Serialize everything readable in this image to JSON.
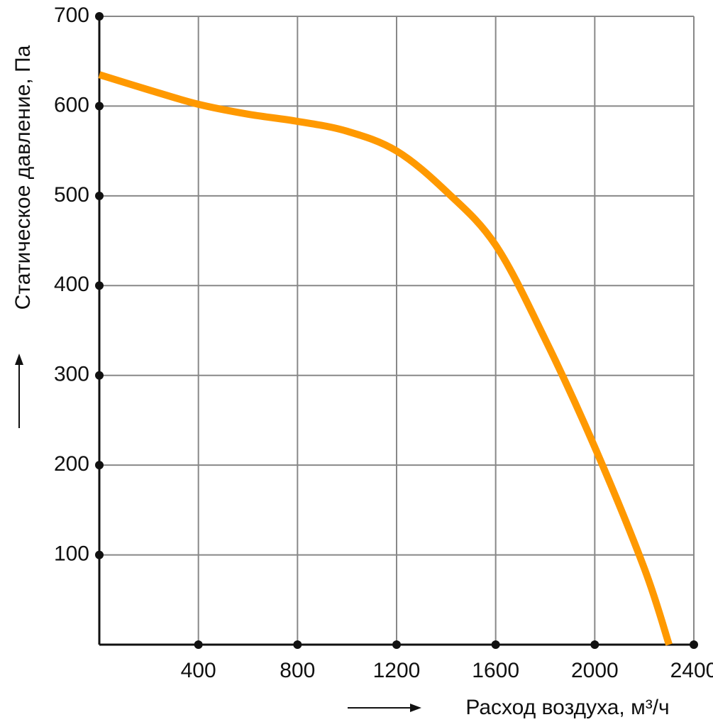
{
  "chart_data": {
    "type": "line",
    "x_label": "Расход воздуха, м³/ч",
    "y_label": "Статическое давление, Па",
    "series": [
      {
        "color": "#ff9900",
        "x": [
          0,
          200,
          400,
          600,
          800,
          1000,
          1200,
          1400,
          1600,
          1800,
          2000,
          2200,
          2300
        ],
        "values": [
          635,
          618,
          602,
          591,
          583,
          572,
          550,
          505,
          445,
          340,
          220,
          85,
          0
        ]
      }
    ],
    "xlim": [
      0,
      2400
    ],
    "xticks": [
      400,
      800,
      1200,
      1600,
      2000,
      2400
    ],
    "ylim": [
      0,
      700
    ],
    "yticks": [
      100,
      200,
      300,
      400,
      500,
      600,
      700
    ],
    "grid": true
  }
}
